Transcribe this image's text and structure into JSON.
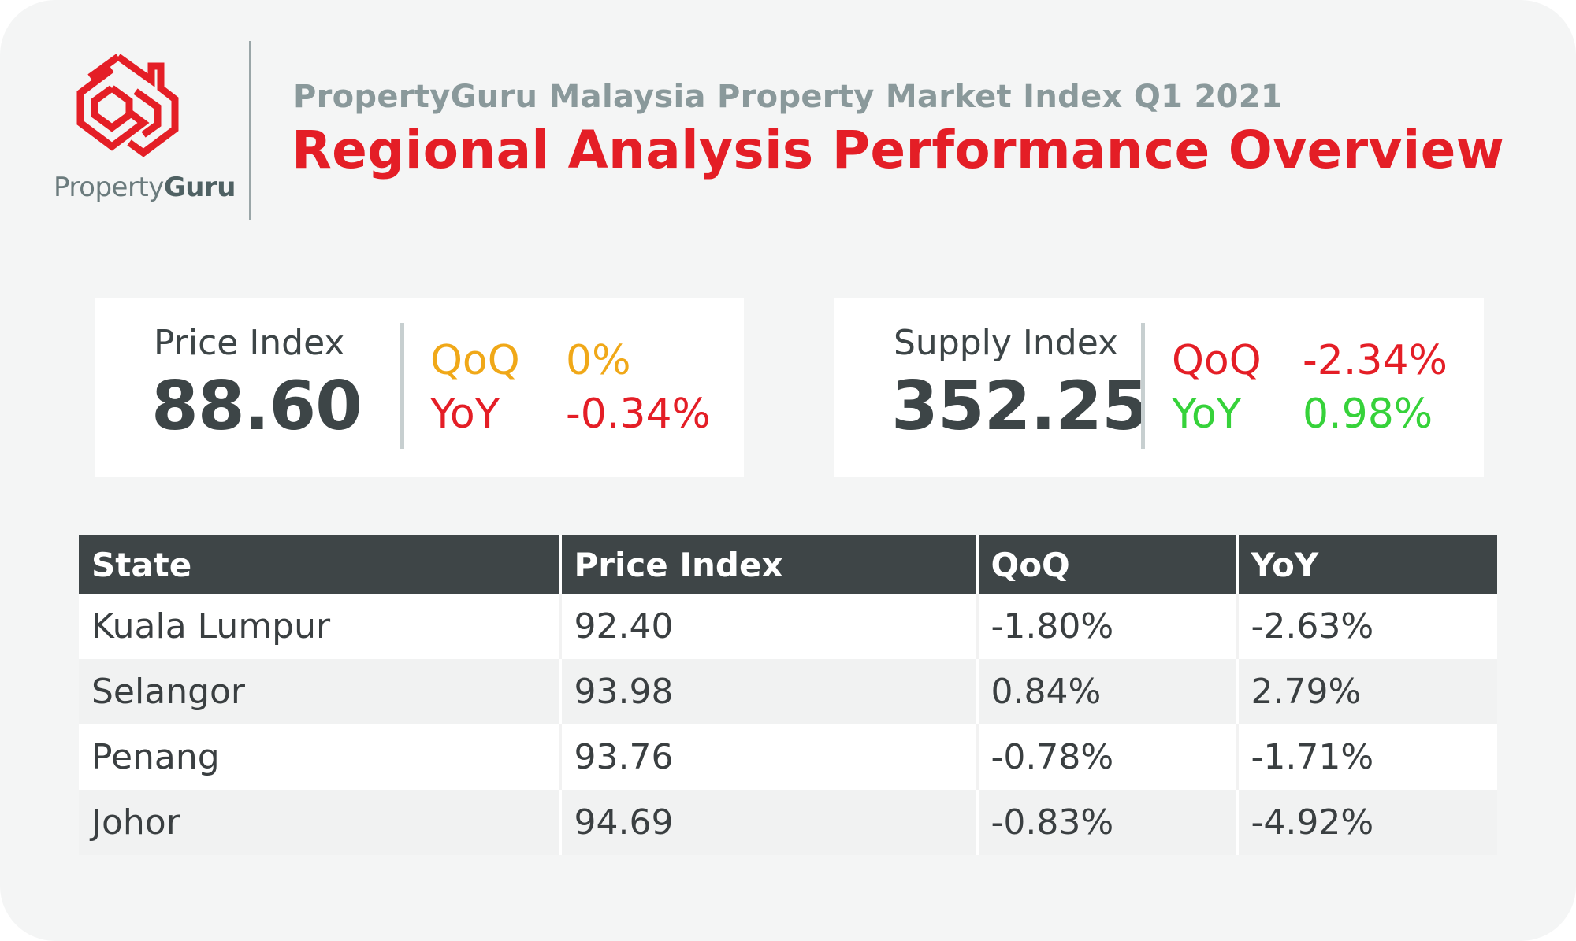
{
  "brand": {
    "logo_text_regular": "Property",
    "logo_text_bold": "Guru",
    "logo_color": "#e41e26"
  },
  "header": {
    "subtitle": "PropertyGuru Malaysia Property Market Index Q1 2021",
    "title": "Regional Analysis Performance Overview"
  },
  "price_index": {
    "label": "Price Index",
    "value": "88.60",
    "qoq_label": "QoQ",
    "qoq_value": "0%",
    "yoy_label": "YoY",
    "yoy_value": "-0.34%"
  },
  "supply_index": {
    "label": "Supply Index",
    "value": "352.25",
    "qoq_label": "QoQ",
    "qoq_value": "-2.34%",
    "yoy_label": "YoY",
    "yoy_value": "0.98%"
  },
  "colors": {
    "neutral": "#f0a818",
    "negative": "#e41e26",
    "positive": "#36d23a",
    "header_bg": "#3e4547"
  },
  "chart_data": {
    "type": "table",
    "title": "Regional Analysis Performance Overview",
    "columns": [
      "State",
      "Price Index",
      "QoQ",
      "YoY"
    ],
    "rows": [
      [
        "Kuala Lumpur",
        "92.40",
        "-1.80%",
        "-2.63%"
      ],
      [
        "Selangor",
        "93.98",
        "0.84%",
        "2.79%"
      ],
      [
        "Penang",
        "93.76",
        "-0.78%",
        "-1.71%"
      ],
      [
        "Johor",
        "94.69",
        "-0.83%",
        "-4.92%"
      ]
    ]
  }
}
